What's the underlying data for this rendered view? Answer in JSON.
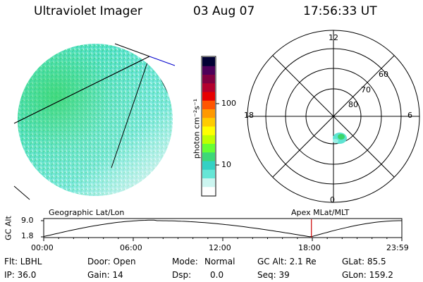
{
  "header": {
    "title": "Ultraviolet Imager",
    "date": "03 Aug 07",
    "time": "17:56:33 UT"
  },
  "colorbar": {
    "label": "photon cm⁻²s⁻¹",
    "ticks": [
      "100",
      "10"
    ],
    "palette": [
      "#ffffff",
      "#ccf5f0",
      "#66e6d6",
      "#33d1c4",
      "#3cd878",
      "#66ff33",
      "#bfff00",
      "#ffff00",
      "#ffcc00",
      "#ff9900",
      "#ff5500",
      "#e60000",
      "#b3002d",
      "#800040",
      "#4d0059",
      "#000033"
    ]
  },
  "polar": {
    "mlt_labels": {
      "top": "12",
      "left": "18",
      "right": "6",
      "bottom": "0"
    },
    "lat_labels": [
      "60",
      "70",
      "80"
    ]
  },
  "timeline": {
    "y_axis_label": "GC Alt",
    "y_max": "9.0",
    "y_min": "1.8",
    "left_title": "Geographic Lat/Lon",
    "right_title": "Apex MLat/MLT",
    "time_ticks": [
      "00:00",
      "06:00",
      "12:00",
      "18:00",
      "23:59"
    ],
    "marker_time_hours": 17.94,
    "marker_color": "#cc0000"
  },
  "info": {
    "filter": "Flt: LBHL",
    "ip": "IP: 36.0",
    "door": "Door: Open",
    "gain": "Gain: 14",
    "mode_label": "Mode:",
    "mode_value": "Normal",
    "dsp_label": "Dsp:",
    "dsp_value": "0.0",
    "gc_alt": "GC Alt: 2.1 Re",
    "seq": "Seq: 39",
    "glat": "GLat: 85.5",
    "glon": "GLon: 159.2"
  }
}
